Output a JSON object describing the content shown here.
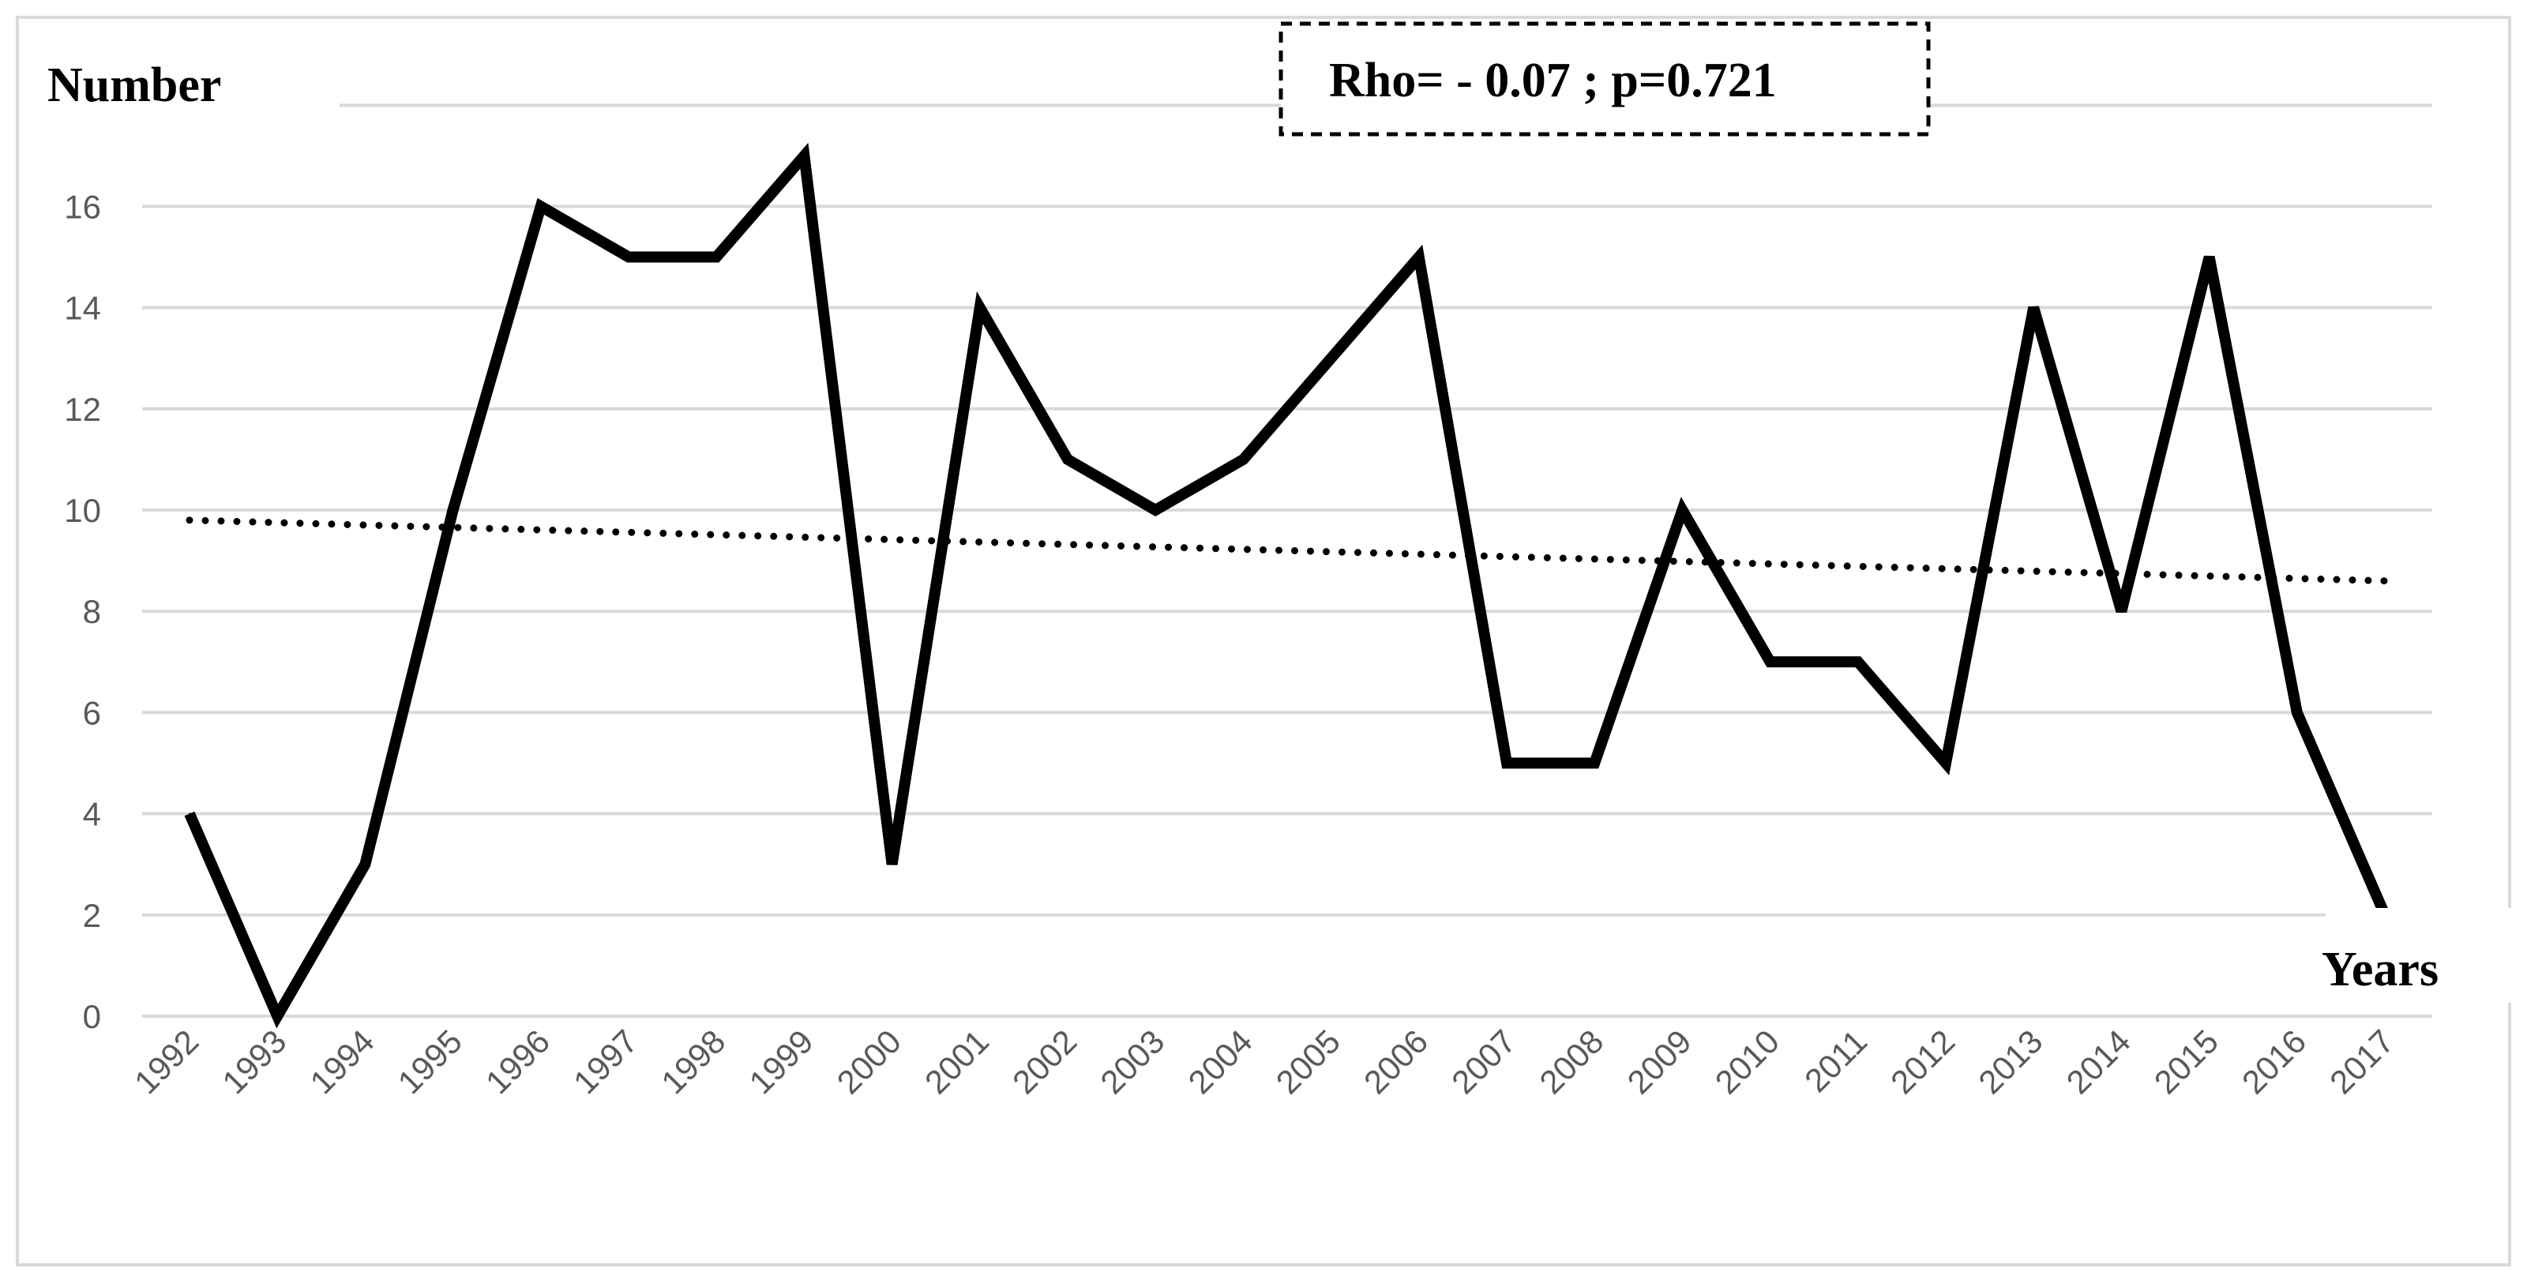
{
  "chart_data": {
    "type": "line",
    "ylabel": "Number",
    "xlabel": "Years",
    "annotation": "Rho= - 0.07 ; p=0.721",
    "categories": [
      "1992",
      "1993",
      "1994",
      "1995",
      "1996",
      "1997",
      "1998",
      "1999",
      "2000",
      "2001",
      "2002",
      "2003",
      "2004",
      "2005",
      "2006",
      "2007",
      "2008",
      "2009",
      "2010",
      "2011",
      "2012",
      "2013",
      "2014",
      "2015",
      "2016",
      "2017"
    ],
    "series": [
      {
        "values": [
          4,
          0,
          3,
          10,
          16,
          15,
          15,
          17,
          3,
          14,
          11,
          10,
          11,
          13,
          15,
          5,
          5,
          10,
          7,
          7,
          5,
          14,
          8,
          15,
          6,
          2
        ],
        "color": "#000000",
        "style": "solid"
      }
    ],
    "trendline": {
      "type": "linear",
      "start": 9.8,
      "end": 8.6,
      "color": "#000000",
      "style": "dotted"
    },
    "ylim": [
      0,
      16
    ],
    "yticks": [
      "0",
      "2",
      "4",
      "6",
      "8",
      "10",
      "12",
      "14",
      "16"
    ],
    "grid": true,
    "legend": "none"
  }
}
